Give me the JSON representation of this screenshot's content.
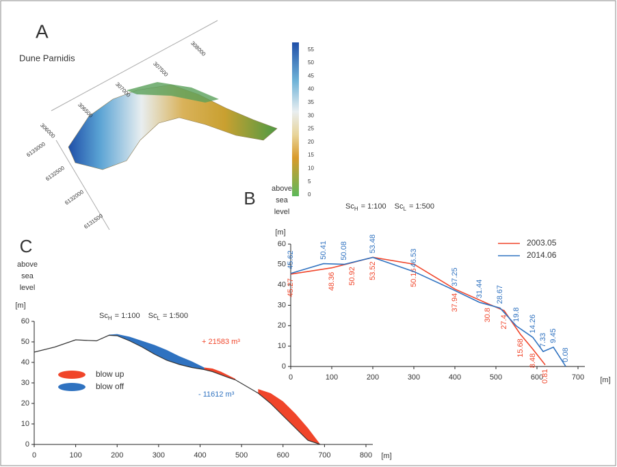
{
  "panel_a": {
    "label": "A",
    "title": "Dune Parnidis",
    "top_coords": [
      "306000",
      "306500",
      "307000",
      "307500",
      "308000"
    ],
    "side_coords": [
      "6133000",
      "6132500",
      "6132000",
      "6131500"
    ],
    "colorbar": {
      "lim": [
        0,
        57
      ],
      "ticks": [
        0,
        5,
        10,
        15,
        20,
        25,
        30,
        35,
        40,
        45,
        50,
        55
      ]
    }
  },
  "chart_data": [
    {
      "type": "line",
      "panel_label": "B",
      "y_label": [
        "above",
        "sea",
        "level"
      ],
      "y_unit": "[m]",
      "x_unit": "[m]",
      "scale": [
        {
          "symbol": "Sc",
          "sub": "H",
          "ratio": "= 1:100"
        },
        {
          "symbol": "Sc",
          "sub": "L",
          "ratio": "= 1:500"
        }
      ],
      "xlim": [
        0,
        700
      ],
      "xticks": [
        0,
        100,
        200,
        300,
        400,
        500,
        600,
        700
      ],
      "ylim": [
        0,
        60
      ],
      "yticks": [
        0,
        10,
        20,
        30,
        40,
        50,
        60
      ],
      "legend": "top-right",
      "series": [
        {
          "name": "2003.05",
          "color": "#f0452a",
          "x": [
            0,
            100,
            150,
            200,
            300,
            400,
            480,
            520,
            560,
            590,
            620
          ],
          "values": [
            45.27,
            48.36,
            50.92,
            53.52,
            50.16,
            37.94,
            30.8,
            27.4,
            15.68,
            8.48,
            0.81
          ]
        },
        {
          "name": "2014.06",
          "color": "#2f72c0",
          "x": [
            0,
            80,
            130,
            200,
            300,
            400,
            460,
            510,
            550,
            590,
            615,
            640,
            670
          ],
          "values": [
            45.62,
            50.41,
            50.08,
            53.48,
            46.53,
            37.25,
            31.44,
            28.67,
            19.8,
            14.26,
            7.33,
            9.45,
            0.08
          ]
        }
      ]
    },
    {
      "type": "area",
      "panel_label": "C",
      "y_label": [
        "above",
        "sea",
        "level"
      ],
      "y_unit": "[m]",
      "x_unit": "[m]",
      "scale": [
        {
          "symbol": "Sc",
          "sub": "H",
          "ratio": "= 1:100"
        },
        {
          "symbol": "Sc",
          "sub": "L",
          "ratio": "= 1:500"
        }
      ],
      "xlim": [
        0,
        800
      ],
      "xticks": [
        0,
        100,
        200,
        300,
        400,
        500,
        600,
        700,
        800
      ],
      "ylim": [
        0,
        60
      ],
      "yticks": [
        0,
        10,
        20,
        30,
        40,
        50,
        60
      ],
      "legend": "left",
      "annotations": [
        {
          "text": "+ 21583 m³",
          "color": "#f0452a"
        },
        {
          "text": "- 11612 m³",
          "color": "#2f72c0"
        }
      ],
      "profile": {
        "color": "#333333",
        "x": [
          0,
          50,
          100,
          150,
          180,
          200,
          230,
          260,
          290,
          320,
          350,
          380,
          410,
          430,
          450,
          470,
          485,
          540,
          570,
          600,
          630,
          660,
          690
        ],
        "values": [
          45,
          47.5,
          51,
          50.5,
          53.2,
          53,
          50.5,
          47.5,
          44,
          41,
          39,
          37.5,
          36.5,
          35.5,
          34,
          32.5,
          31.5,
          25,
          20,
          14,
          8,
          2,
          0
        ]
      },
      "series": [
        {
          "name": "blow up",
          "color": "#f0452a",
          "x": [
            410,
            430,
            450,
            470,
            485,
            510,
            540,
            570,
            600,
            630,
            660,
            690
          ],
          "low": [
            36.5,
            35.5,
            34,
            32.5,
            31.5,
            null,
            25,
            20,
            14,
            8,
            2,
            0
          ],
          "high": [
            37.5,
            37,
            35.5,
            33.5,
            32,
            null,
            27,
            25,
            21,
            15,
            8,
            0
          ]
        },
        {
          "name": "blow off",
          "color": "#2f72c0",
          "x": [
            180,
            200,
            230,
            260,
            290,
            320,
            350,
            380,
            410
          ],
          "low": [
            53.2,
            53,
            50.5,
            47.5,
            44,
            41,
            39,
            37.5,
            36.5
          ],
          "high": [
            53.5,
            53.8,
            52.5,
            50.5,
            48.5,
            46,
            43,
            40.5,
            37.5
          ]
        }
      ]
    }
  ]
}
